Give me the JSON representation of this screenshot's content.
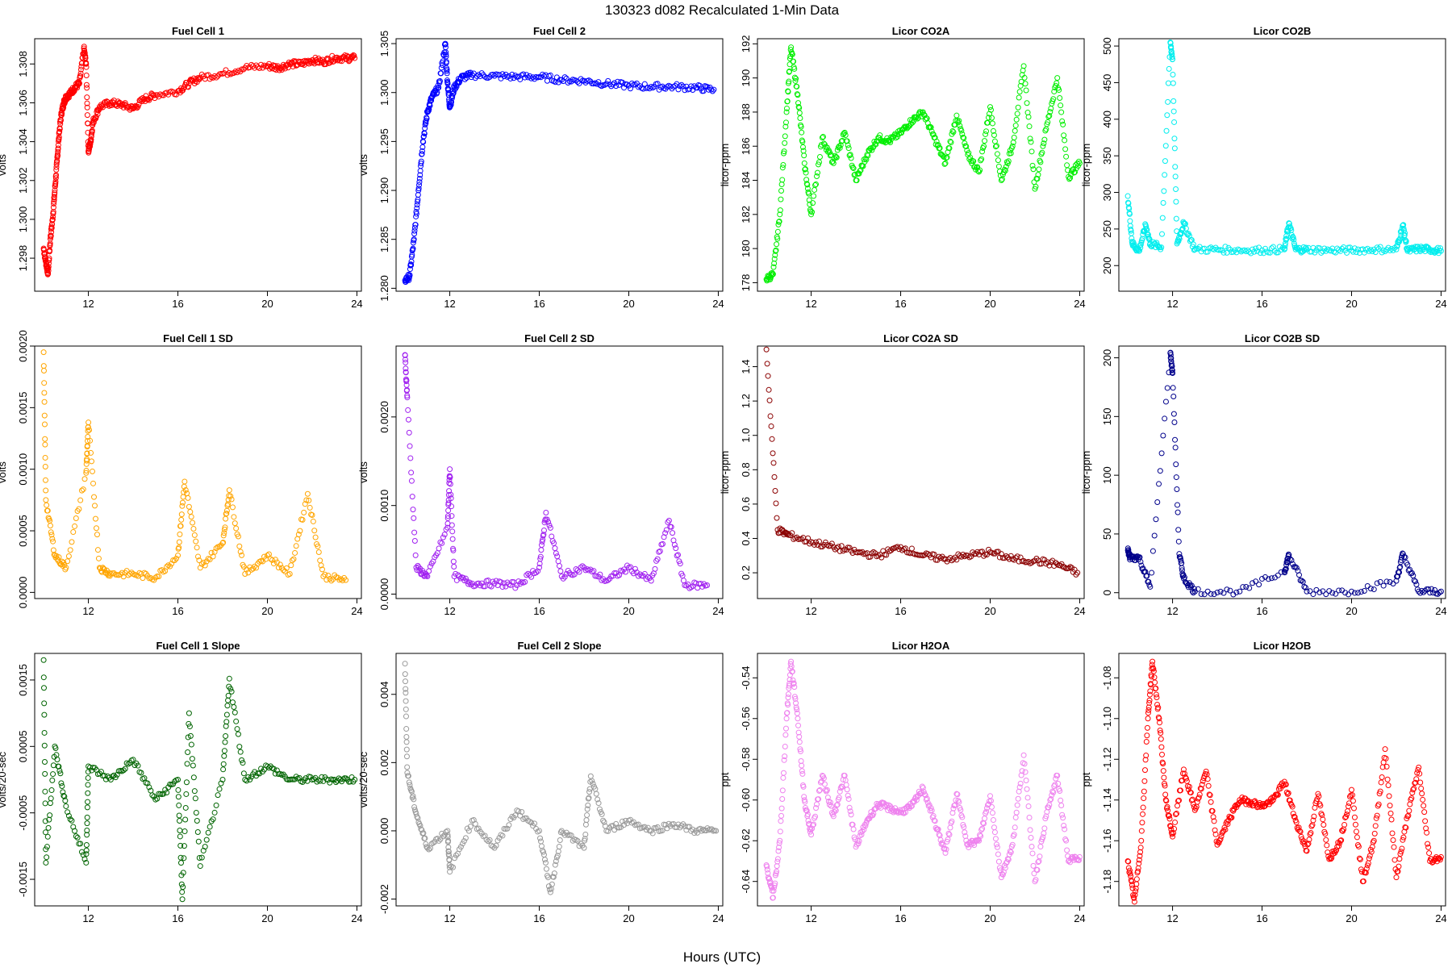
{
  "figure": {
    "title": "130323   d082   Recalculated 1-Min Data",
    "xlabel": "Hours (UTC)"
  },
  "chart_data": [
    {
      "type": "scatter",
      "title": "Fuel Cell 1",
      "ylabel": "volts",
      "color": "#ff0000",
      "xlim": [
        9.6,
        24.2
      ],
      "ylim": [
        1.2963,
        1.3093
      ],
      "xticks": [
        12,
        16,
        20,
        24
      ],
      "yticks": [
        1.298,
        1.3,
        1.302,
        1.304,
        1.306,
        1.308
      ],
      "ytick_labels": [
        "1.298",
        "1.300",
        "1.302",
        "1.304",
        "1.306",
        "1.308"
      ],
      "series": [
        {
          "x": [
            10.0,
            10.1,
            10.2,
            10.3,
            10.4,
            10.5,
            10.6,
            10.7,
            10.8,
            10.9,
            11.0,
            11.2,
            11.4,
            11.6,
            11.8,
            11.9,
            12.0,
            12.1,
            12.2,
            12.5,
            13.0,
            13.5,
            14.0,
            14.5,
            15.0,
            16.0,
            16.5,
            17.0,
            18.0,
            19.0,
            20.0,
            20.5,
            21.0,
            21.5,
            22.0,
            22.5,
            23.0,
            23.5,
            23.9
          ],
          "y": [
            1.2985,
            1.2978,
            1.2972,
            1.299,
            1.3,
            1.3015,
            1.303,
            1.3045,
            1.3055,
            1.306,
            1.3063,
            1.3065,
            1.3068,
            1.307,
            1.3088,
            1.308,
            1.3035,
            1.304,
            1.305,
            1.3058,
            1.306,
            1.3059,
            1.3057,
            1.3062,
            1.3064,
            1.3066,
            1.307,
            1.3073,
            1.3075,
            1.3078,
            1.3079,
            1.3078,
            1.308,
            1.308,
            1.3082,
            1.3081,
            1.3083,
            1.3083,
            1.3083
          ]
        }
      ]
    },
    {
      "type": "scatter",
      "title": "Fuel Cell 2",
      "ylabel": "volts",
      "color": "#0000ff",
      "xlim": [
        9.6,
        24.2
      ],
      "ylim": [
        1.2797,
        1.3055
      ],
      "xticks": [
        12,
        16,
        20,
        24
      ],
      "yticks": [
        1.28,
        1.285,
        1.29,
        1.295,
        1.3,
        1.305
      ],
      "ytick_labels": [
        "1.280",
        "1.285",
        "1.290",
        "1.295",
        "1.300",
        "1.305"
      ],
      "series": [
        {
          "x": [
            10.0,
            10.2,
            10.4,
            10.6,
            10.8,
            11.0,
            11.2,
            11.5,
            11.8,
            11.9,
            12.0,
            12.2,
            12.5,
            13.0,
            14.0,
            15.0,
            16.0,
            17.0,
            18.0,
            19.0,
            20.0,
            21.0,
            22.0,
            23.0,
            23.8
          ],
          "y": [
            1.2808,
            1.2812,
            1.285,
            1.29,
            1.295,
            1.298,
            1.2995,
            1.3005,
            1.305,
            1.301,
            1.2985,
            1.3005,
            1.3015,
            1.3018,
            1.3017,
            1.3016,
            1.3016,
            1.3013,
            1.3012,
            1.3009,
            1.3007,
            1.3006,
            1.3006,
            1.3005,
            1.3003
          ]
        }
      ]
    },
    {
      "type": "scatter",
      "title": "Licor CO2A",
      "ylabel": "licor-ppm",
      "color": "#00ee00",
      "xlim": [
        9.6,
        24.2
      ],
      "ylim": [
        177.5,
        192.3
      ],
      "xticks": [
        12,
        16,
        20,
        24
      ],
      "yticks": [
        178,
        180,
        182,
        184,
        186,
        188,
        190,
        192
      ],
      "ytick_labels": [
        "178",
        "180",
        "182",
        "184",
        "186",
        "188",
        "190",
        "192"
      ],
      "series": [
        {
          "x": [
            10.0,
            10.3,
            10.6,
            10.9,
            11.1,
            11.4,
            11.7,
            12.0,
            12.5,
            13.0,
            13.5,
            14.0,
            14.5,
            15.0,
            15.5,
            16.0,
            16.5,
            17.0,
            17.5,
            18.0,
            18.5,
            19.0,
            19.5,
            20.0,
            20.5,
            21.0,
            21.5,
            22.0,
            22.5,
            23.0,
            23.5,
            24.0
          ],
          "y": [
            178.2,
            178.5,
            182.0,
            188.0,
            191.8,
            189.0,
            185.0,
            182.0,
            186.5,
            185.0,
            186.8,
            184.0,
            185.5,
            186.5,
            186.3,
            186.8,
            187.5,
            188.0,
            186.5,
            185.0,
            187.8,
            185.5,
            184.5,
            188.3,
            184.0,
            186.0,
            190.7,
            183.5,
            187.0,
            190.0,
            184.2,
            185.0
          ]
        }
      ]
    },
    {
      "type": "scatter",
      "title": "Licor CO2B",
      "ylabel": "licor-ppm",
      "color": "#00eeee",
      "xlim": [
        9.6,
        24.2
      ],
      "ylim": [
        165,
        510
      ],
      "xticks": [
        12,
        16,
        20,
        24
      ],
      "yticks": [
        200,
        250,
        300,
        350,
        400,
        450,
        500
      ],
      "ytick_labels": [
        "200",
        "250",
        "300",
        "350",
        "400",
        "450",
        "500"
      ],
      "series": [
        {
          "x": [
            10.0,
            10.2,
            10.5,
            10.8,
            11.0,
            11.5,
            11.9,
            12.0,
            12.2,
            12.5,
            13.0,
            14.0,
            15.0,
            16.0,
            17.0,
            17.2,
            17.5,
            18.0,
            19.0,
            20.0,
            21.0,
            22.0,
            22.3,
            22.5,
            23.0,
            23.5,
            24.0
          ],
          "y": [
            295,
            230,
            220,
            255,
            230,
            225,
            505,
            482,
            230,
            258,
            222,
            222,
            221,
            221,
            222,
            258,
            222,
            222,
            221,
            221,
            222,
            222,
            255,
            220,
            223,
            222,
            220
          ]
        }
      ]
    },
    {
      "type": "scatter",
      "title": "Fuel Cell 1 SD",
      "ylabel": "volts",
      "color": "#ffa500",
      "xlim": [
        9.6,
        24.2
      ],
      "ylim": [
        -5e-05,
        0.002
      ],
      "xticks": [
        12,
        16,
        20,
        24
      ],
      "yticks": [
        0.0,
        0.0005,
        0.001,
        0.0015,
        0.002
      ],
      "ytick_labels": [
        "0.0000",
        "0.0005",
        "0.0010",
        "0.0015",
        "0.0020"
      ],
      "series": [
        {
          "x": [
            10.0,
            10.1,
            10.5,
            11.0,
            11.9,
            12.0,
            12.5,
            13.0,
            14.0,
            15.0,
            16.0,
            16.3,
            17.0,
            18.0,
            18.3,
            19.0,
            20.0,
            21.0,
            21.8,
            22.5,
            23.5
          ],
          "y": [
            0.00195,
            0.00075,
            0.0003,
            0.0002,
            0.00097,
            0.00138,
            0.0002,
            0.00015,
            0.00015,
            0.00012,
            0.0003,
            0.0009,
            0.0002,
            0.0004,
            0.00083,
            0.00015,
            0.0003,
            0.00015,
            0.0008,
            0.00013,
            0.0001
          ]
        }
      ]
    },
    {
      "type": "scatter",
      "title": "Fuel Cell 2 SD",
      "ylabel": "volts",
      "color": "#a020f0",
      "xlim": [
        9.6,
        24.2
      ],
      "ylim": [
        -5e-05,
        0.0028
      ],
      "xticks": [
        12,
        16,
        20,
        24
      ],
      "yticks": [
        0.0,
        0.001,
        0.002
      ],
      "ytick_labels": [
        "0.0000",
        "0.0010",
        "0.0020"
      ],
      "series": [
        {
          "x": [
            10.0,
            10.1,
            10.5,
            11.0,
            11.9,
            12.0,
            12.2,
            13.0,
            14.0,
            15.0,
            16.0,
            16.3,
            17.0,
            18.0,
            19.0,
            20.0,
            21.0,
            21.8,
            22.5,
            23.5
          ],
          "y": [
            0.0027,
            0.00222,
            0.0003,
            0.0002,
            0.00075,
            0.00141,
            0.0002,
            0.00012,
            0.00012,
            0.0001,
            0.0003,
            0.00092,
            0.0002,
            0.0003,
            0.00015,
            0.0003,
            0.00015,
            0.00083,
            0.0001,
            0.0001
          ]
        }
      ]
    },
    {
      "type": "scatter",
      "title": "Licor CO2A SD",
      "ylabel": "licor-ppm",
      "color": "#8b0000",
      "xlim": [
        9.6,
        24.2
      ],
      "ylim": [
        0.05,
        1.52
      ],
      "xticks": [
        12,
        16,
        20,
        24
      ],
      "yticks": [
        0.2,
        0.4,
        0.6,
        0.8,
        1.0,
        1.2,
        1.4
      ],
      "ytick_labels": [
        "0.2",
        "0.4",
        "0.6",
        "0.8",
        "1.0",
        "1.2",
        "1.4"
      ],
      "series": [
        {
          "x": [
            10.0,
            10.5,
            11.0,
            12.0,
            13.0,
            14.0,
            15.0,
            16.0,
            17.0,
            18.0,
            19.0,
            20.0,
            21.0,
            22.0,
            23.0,
            23.9
          ],
          "y": [
            1.5,
            0.45,
            0.42,
            0.38,
            0.35,
            0.32,
            0.3,
            0.35,
            0.3,
            0.28,
            0.3,
            0.32,
            0.28,
            0.27,
            0.25,
            0.2
          ]
        }
      ]
    },
    {
      "type": "scatter",
      "title": "Licor CO2B SD",
      "ylabel": "licor-ppm",
      "color": "#00008b",
      "xlim": [
        9.6,
        24.2
      ],
      "ylim": [
        -5,
        210
      ],
      "xticks": [
        12,
        16,
        20,
        24
      ],
      "yticks": [
        0,
        50,
        100,
        150,
        200
      ],
      "ytick_labels": [
        "0",
        "50",
        "100",
        "150",
        "200"
      ],
      "series": [
        {
          "x": [
            10.0,
            10.1,
            10.5,
            11.0,
            11.9,
            12.0,
            12.3,
            12.5,
            13.0,
            15.0,
            17.0,
            17.2,
            18.0,
            20.0,
            22.0,
            22.3,
            23.0,
            24.0
          ],
          "y": [
            36,
            30,
            30,
            5,
            204,
            187,
            33,
            12,
            1,
            1,
            18,
            32,
            1,
            1,
            10,
            33,
            1,
            1
          ]
        }
      ]
    },
    {
      "type": "scatter",
      "title": "Fuel Cell 1 Slope",
      "ylabel": "volts/20-sec",
      "color": "#006400",
      "xlim": [
        9.6,
        24.2
      ],
      "ylim": [
        -0.0019,
        0.0019
      ],
      "xticks": [
        12,
        16,
        20,
        24
      ],
      "yticks": [
        -0.0015,
        -0.0005,
        0.0005,
        0.0015
      ],
      "ytick_labels": [
        "-0.0015",
        "-0.0005",
        "0.0005",
        "0.0015"
      ],
      "series": [
        {
          "x": [
            10.0,
            10.1,
            10.5,
            11.0,
            11.9,
            12.0,
            13.0,
            14.0,
            15.0,
            16.0,
            16.2,
            16.5,
            17.0,
            18.0,
            18.3,
            19.0,
            20.0,
            21.0,
            22.0,
            23.0,
            23.9
          ],
          "y": [
            0.0018,
            -0.00125,
            0.0005,
            -0.0004,
            -0.00125,
            0.0002,
            0.0,
            0.0003,
            -0.0003,
            0.0,
            -0.0018,
            0.001,
            -0.0013,
            0.0,
            0.00152,
            0.0,
            0.0002,
            0.0,
            0.0,
            0.0,
            0.0
          ]
        }
      ]
    },
    {
      "type": "scatter",
      "title": "Fuel Cell 2 Slope",
      "ylabel": "volts/20-sec",
      "color": "#999999",
      "xlim": [
        9.6,
        24.2
      ],
      "ylim": [
        -0.0022,
        0.0052
      ],
      "xticks": [
        12,
        16,
        20,
        24
      ],
      "yticks": [
        -0.002,
        0.0,
        0.002,
        0.004
      ],
      "ytick_labels": [
        "-0.002",
        "0.000",
        "0.002",
        "0.004"
      ],
      "series": [
        {
          "x": [
            10.0,
            10.1,
            10.5,
            11.0,
            11.9,
            12.0,
            13.0,
            14.0,
            15.0,
            16.0,
            16.5,
            17.0,
            18.0,
            18.3,
            19.0,
            20.0,
            21.0,
            22.0,
            23.0,
            23.9
          ],
          "y": [
            0.0049,
            0.0017,
            0.0005,
            -0.0005,
            0.0,
            -0.0012,
            0.0003,
            -0.0005,
            0.0006,
            0.0,
            -0.0018,
            0.0,
            -0.0005,
            0.0016,
            0.0,
            0.0003,
            0.0,
            0.0002,
            0.0,
            0.0
          ]
        }
      ]
    },
    {
      "type": "scatter",
      "title": "Licor H2OA",
      "ylabel": "ppt",
      "color": "#ee82ee",
      "xlim": [
        9.6,
        24.2
      ],
      "ylim": [
        -0.652,
        -0.528
      ],
      "xticks": [
        12,
        16,
        20,
        24
      ],
      "yticks": [
        -0.64,
        -0.62,
        -0.6,
        -0.58,
        -0.56,
        -0.54
      ],
      "ytick_labels": [
        "-0.64",
        "-0.62",
        "-0.60",
        "-0.58",
        "-0.56",
        "-0.54"
      ],
      "series": [
        {
          "x": [
            10.0,
            10.3,
            10.6,
            10.9,
            11.1,
            11.4,
            11.7,
            12.0,
            12.5,
            13.0,
            13.5,
            14.0,
            14.5,
            15.0,
            15.5,
            16.0,
            16.5,
            17.0,
            17.5,
            18.0,
            18.5,
            19.0,
            19.5,
            20.0,
            20.5,
            21.0,
            21.5,
            22.0,
            22.5,
            23.0,
            23.5,
            24.0
          ],
          "y": [
            -0.632,
            -0.648,
            -0.62,
            -0.56,
            -0.532,
            -0.56,
            -0.6,
            -0.617,
            -0.588,
            -0.608,
            -0.588,
            -0.623,
            -0.61,
            -0.602,
            -0.604,
            -0.606,
            -0.603,
            -0.594,
            -0.61,
            -0.626,
            -0.597,
            -0.622,
            -0.62,
            -0.598,
            -0.638,
            -0.622,
            -0.578,
            -0.64,
            -0.608,
            -0.588,
            -0.63,
            -0.628
          ]
        }
      ]
    },
    {
      "type": "scatter",
      "title": "Licor H2OB",
      "ylabel": "ppt",
      "color": "#ff0000",
      "xlim": [
        9.6,
        24.2
      ],
      "ylim": [
        -1.192,
        -1.068
      ],
      "xticks": [
        12,
        16,
        20,
        24
      ],
      "yticks": [
        -1.18,
        -1.16,
        -1.14,
        -1.12,
        -1.1,
        -1.08
      ],
      "ytick_labels": [
        "-1.18",
        "-1.16",
        "-1.14",
        "-1.12",
        "-1.10",
        "-1.08"
      ],
      "series": [
        {
          "x": [
            10.0,
            10.3,
            10.6,
            10.9,
            11.1,
            11.4,
            11.7,
            12.0,
            12.5,
            13.0,
            13.5,
            14.0,
            14.5,
            15.0,
            15.5,
            16.0,
            16.5,
            17.0,
            17.5,
            18.0,
            18.5,
            19.0,
            19.5,
            20.0,
            20.5,
            21.0,
            21.5,
            22.0,
            22.5,
            23.0,
            23.5,
            24.0
          ],
          "y": [
            -1.17,
            -1.19,
            -1.16,
            -1.1,
            -1.072,
            -1.1,
            -1.14,
            -1.158,
            -1.125,
            -1.145,
            -1.126,
            -1.162,
            -1.15,
            -1.14,
            -1.141,
            -1.143,
            -1.14,
            -1.131,
            -1.15,
            -1.165,
            -1.137,
            -1.169,
            -1.16,
            -1.135,
            -1.18,
            -1.16,
            -1.115,
            -1.178,
            -1.148,
            -1.124,
            -1.17,
            -1.168
          ]
        }
      ]
    }
  ]
}
